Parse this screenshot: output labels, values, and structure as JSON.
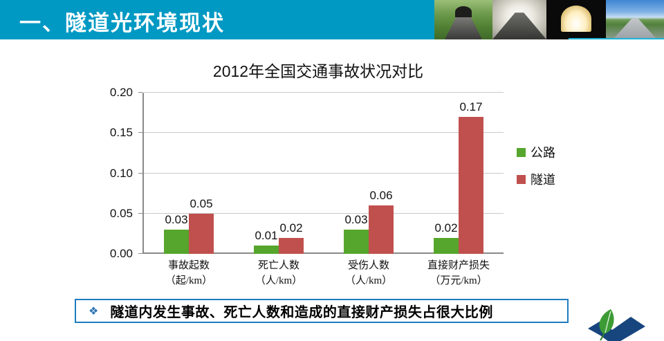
{
  "header": {
    "title": "一、隧道光环境现状",
    "background_color": "#0099C3",
    "photos": [
      "tunnel-entrance-photo",
      "tunnel-interior-photo",
      "tunnel-exit-photo",
      "highway-photo"
    ]
  },
  "chart_data": {
    "type": "bar",
    "title": "2012年全国交通事故状况对比",
    "categories": [
      [
        "事故起数",
        "（起/km）"
      ],
      [
        "死亡人数",
        "（人/km）"
      ],
      [
        "受伤人数",
        "（人/km）"
      ],
      [
        "直接财产损失",
        "（万元/km）"
      ]
    ],
    "series": [
      {
        "name": "公路",
        "color": "#56A62D",
        "values": [
          0.03,
          0.01,
          0.03,
          0.02
        ]
      },
      {
        "name": "隧道",
        "color": "#C0504D",
        "values": [
          0.05,
          0.02,
          0.06,
          0.17
        ]
      }
    ],
    "ylim": [
      0,
      0.2
    ],
    "yticks": [
      "0.00",
      "0.05",
      "0.10",
      "0.15",
      "0.20"
    ],
    "ytick_values": [
      0,
      0.05,
      0.1,
      0.15,
      0.2
    ],
    "grid": true,
    "data_labels": true,
    "legend_position": "right"
  },
  "summary": {
    "bullet_char": "❖",
    "bullet_color": "#2E74B5",
    "border_color": "#1E7CC0",
    "text": "隧道内发生事故、死亡人数和造成的直接财产损失占很大比例"
  },
  "logo": {
    "name": "leaf-swoosh-logo",
    "leaf_color": "#3C9B35",
    "swoosh_color": "#17457E"
  }
}
